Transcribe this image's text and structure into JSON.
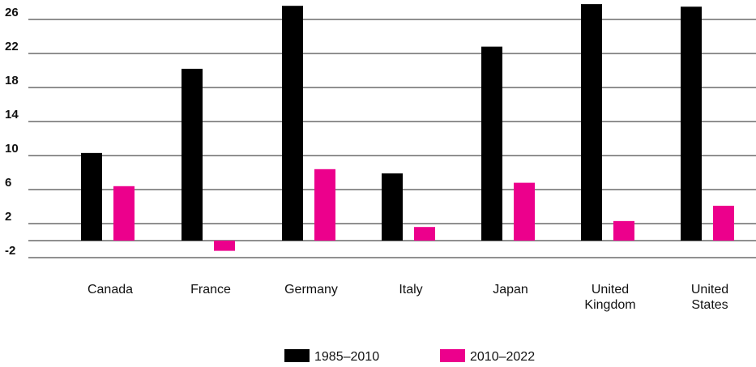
{
  "chart_data": {
    "type": "bar",
    "title": "",
    "xlabel": "",
    "ylabel": "",
    "categories": [
      [
        "Canada"
      ],
      [
        "France"
      ],
      [
        "Germany"
      ],
      [
        "Italy"
      ],
      [
        "Japan"
      ],
      [
        "United",
        "Kingdom"
      ],
      [
        "United",
        "States"
      ]
    ],
    "series": [
      {
        "name": "1985–2010",
        "color": "#000000",
        "values": [
          10.3,
          20.2,
          27.6,
          7.9,
          22.8,
          27.8,
          27.5
        ]
      },
      {
        "name": "2010–2022",
        "color": "#ec008c",
        "values": [
          6.4,
          -1.2,
          8.4,
          1.6,
          6.8,
          2.3,
          4.1
        ]
      }
    ],
    "ylim": [
      -2,
      28
    ],
    "yticks": [
      26,
      22,
      18,
      14,
      10,
      6,
      2,
      -2
    ],
    "grid": true,
    "legend_position": "bottom-center"
  }
}
